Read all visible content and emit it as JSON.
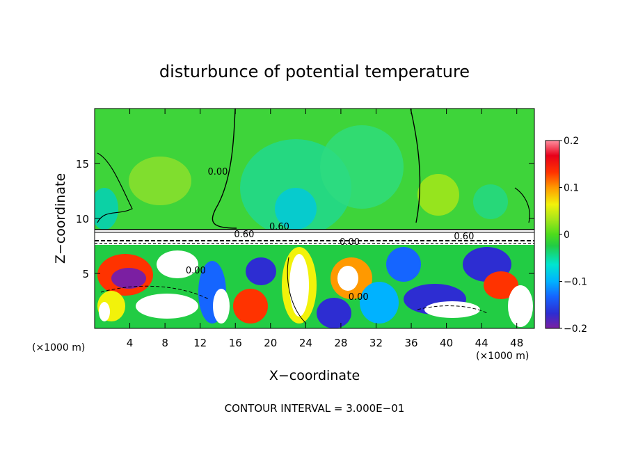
{
  "chart_data": {
    "type": "heatmap",
    "title": "disturbunce of potential temperature",
    "xlabel": "X−coordinate",
    "ylabel": "Z−coordinate",
    "x_unit_left": "(×1000 m)",
    "x_unit_right": "(×1000 m)",
    "xlim": [
      0,
      50
    ],
    "ylim": [
      0,
      20
    ],
    "xticks": [
      4,
      8,
      12,
      16,
      20,
      24,
      28,
      32,
      36,
      40,
      44,
      48
    ],
    "yticks": [
      5,
      10,
      15
    ],
    "colorbar": {
      "range": [
        -0.2,
        0.2
      ],
      "tick_values": [
        0.2,
        0.1,
        0,
        -0.1,
        -0.2
      ],
      "tick_labels": [
        "0.2",
        "0.1",
        "0",
        "−0.1",
        "−0.2"
      ]
    },
    "contour_labels": [
      {
        "text": "0.00",
        "x": 14.0,
        "z": 14.0
      },
      {
        "text": "0.60",
        "x": 17.0,
        "z": 8.3
      },
      {
        "text": "0.60",
        "x": 21.0,
        "z": 9.0
      },
      {
        "text": "0.00",
        "x": 29.0,
        "z": 7.6
      },
      {
        "text": "0.60",
        "x": 42.0,
        "z": 8.1
      },
      {
        "text": "0.00",
        "x": 11.5,
        "z": 5.0
      },
      {
        "text": "0.00",
        "x": 30.0,
        "z": 2.6
      }
    ],
    "footnote": "CONTOUR INTERVAL = 3.000E−01"
  },
  "colors": {
    "colormap": [
      "#7b1fa2",
      "#2d2dd2",
      "#1565ff",
      "#00b2ff",
      "#00e5d0",
      "#22cc44",
      "#4ddc1c",
      "#a6e61a",
      "#f2f20a",
      "#ff9900",
      "#ff3300",
      "#e8001a",
      "#ff8fa0"
    ],
    "upper_field": "#3ed43a"
  }
}
